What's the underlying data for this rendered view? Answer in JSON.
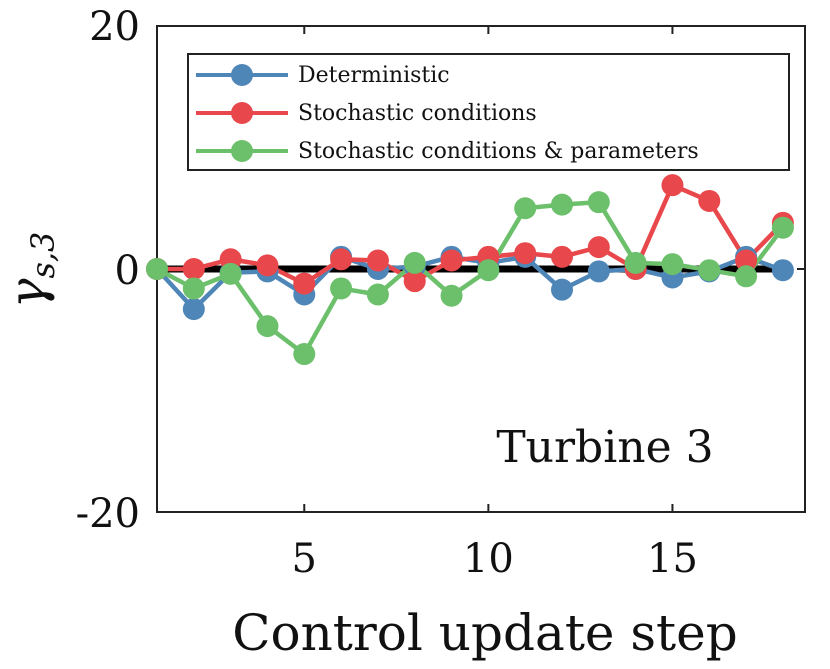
{
  "chart_data": {
    "type": "line",
    "title": "",
    "xlabel": "Control update step",
    "ylabel_main": "γ",
    "ylabel_sub": "s,3",
    "xlim": [
      1,
      18.6
    ],
    "ylim": [
      -20,
      20
    ],
    "xticks": [
      5,
      10,
      15
    ],
    "yticks": [
      {
        "value": -20,
        "label": "-20"
      },
      {
        "value": 0,
        "label": "0"
      },
      {
        "value": 20,
        "label": "20"
      }
    ],
    "grid": false,
    "legend_position": "top",
    "annotation": "Turbine 3",
    "x": [
      1,
      2,
      3,
      4,
      5,
      6,
      7,
      8,
      9,
      10,
      11,
      12,
      13,
      14,
      15,
      16,
      17,
      18
    ],
    "reference_line": {
      "value": 0,
      "color": "#000000"
    },
    "series": [
      {
        "name": "Deterministic",
        "color": "#4f86b8",
        "values": [
          0,
          -3.3,
          -0.3,
          -0.2,
          -2.1,
          1.0,
          0.0,
          0.2,
          1.0,
          0.5,
          1.0,
          -1.7,
          -0.2,
          0.0,
          -0.7,
          -0.2,
          1.0,
          -0.1
        ]
      },
      {
        "name": "Stochastic conditions",
        "color": "#e8474b",
        "values": [
          0,
          0.0,
          0.8,
          0.3,
          -1.2,
          0.8,
          0.7,
          -1.0,
          0.7,
          1.0,
          1.3,
          1.0,
          1.8,
          0.0,
          6.9,
          5.6,
          0.7,
          3.8
        ]
      },
      {
        "name": "Stochastic conditions & parameters",
        "color": "#6cc06b",
        "values": [
          0,
          -1.6,
          -0.4,
          -4.7,
          -7.0,
          -1.6,
          -2.1,
          0.5,
          -2.2,
          -0.1,
          5.0,
          5.3,
          5.5,
          0.5,
          0.4,
          -0.1,
          -0.6,
          3.4
        ]
      }
    ]
  }
}
